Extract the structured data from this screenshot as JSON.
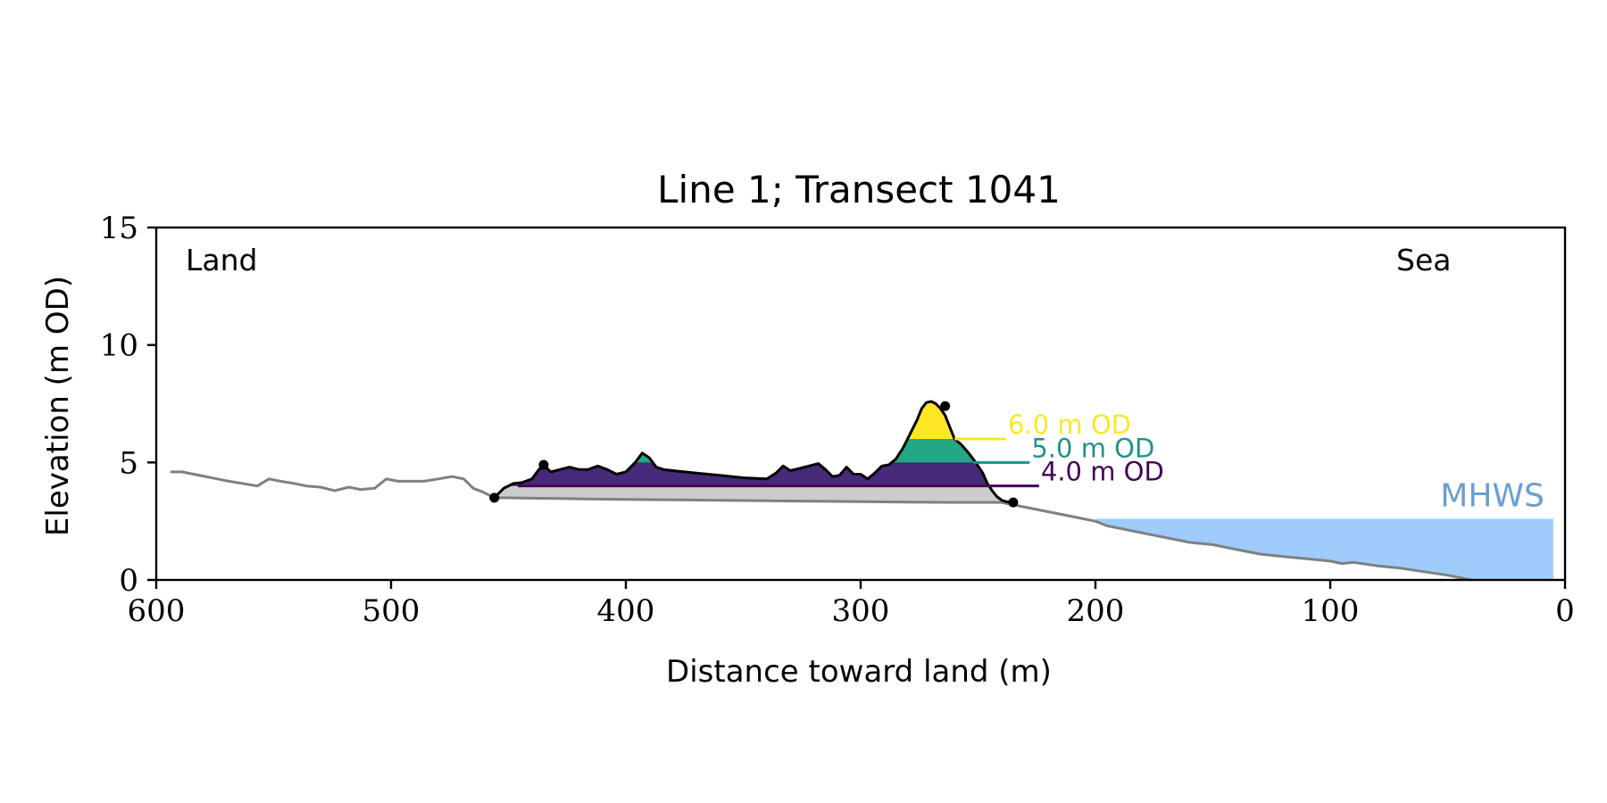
{
  "chart_data": {
    "type": "area",
    "title": "Line 1; Transect 1041",
    "xlabel": "Distance toward land (m)",
    "ylabel": "Elevation (m OD)",
    "xlim": [
      600,
      0
    ],
    "ylim": [
      0,
      15
    ],
    "x_ticks": [
      600,
      500,
      400,
      300,
      200,
      100,
      0
    ],
    "y_ticks": [
      0,
      5,
      10,
      15
    ],
    "grid": false,
    "annotations": {
      "land": "Land",
      "sea": "Sea",
      "mhws": "MHWS"
    },
    "mhws": {
      "elevation": 2.6,
      "x_start": 200,
      "x_end": 5
    },
    "levels": [
      {
        "label": "6.0 m OD",
        "elevation": 6.0,
        "color": "#fde725",
        "line_start": 260,
        "line_end": 238
      },
      {
        "label": "5.0 m OD",
        "elevation": 5.0,
        "color": "#21918c",
        "line_start": 252,
        "line_end": 228
      },
      {
        "label": "4.0 m OD",
        "elevation": 4.0,
        "color": "#440154",
        "line_start": 446,
        "line_end": 224
      }
    ],
    "colors": {
      "profile": "#808080",
      "dune_outline": "#000000",
      "base_fill": "#cccccc",
      "below_4m_fill": "#472a7a",
      "band_5_6": "#22a884",
      "band_6_up": "#fde725",
      "mhws_fill": "#9ecbfa",
      "mhws_label": "#6a9fd0"
    },
    "dune_markers": [
      {
        "x": 456,
        "y": 3.5
      },
      {
        "x": 435,
        "y": 4.9
      },
      {
        "x": 264,
        "y": 7.4
      },
      {
        "x": 235,
        "y": 3.3
      }
    ],
    "dune_toe_line": {
      "x": [
        456,
        235
      ],
      "y": [
        3.5,
        3.3
      ]
    },
    "profile": {
      "x": [
        594,
        589,
        584,
        579,
        574,
        569,
        563,
        557,
        552,
        547,
        541,
        536,
        530,
        524,
        518,
        513,
        507,
        502,
        497,
        492,
        486,
        480,
        474,
        469,
        465,
        461,
        456,
        440,
        420,
        400,
        380,
        360,
        340,
        320,
        300,
        280,
        260,
        240,
        230,
        220,
        210,
        200,
        195,
        185,
        175,
        165,
        160,
        150,
        140,
        130,
        120,
        110,
        100,
        95,
        90,
        80,
        70,
        60,
        50,
        45,
        40
      ],
      "y": [
        4.6,
        4.6,
        4.5,
        4.4,
        4.3,
        4.2,
        4.1,
        4.0,
        4.3,
        4.2,
        4.1,
        4.0,
        3.95,
        3.8,
        3.95,
        3.85,
        3.9,
        4.3,
        4.2,
        4.2,
        4.2,
        4.3,
        4.4,
        4.3,
        3.9,
        3.75,
        3.5,
        3.48,
        3.45,
        3.43,
        3.41,
        3.39,
        3.37,
        3.35,
        3.33,
        3.31,
        3.3,
        3.3,
        3.1,
        2.9,
        2.7,
        2.5,
        2.3,
        2.1,
        1.9,
        1.7,
        1.6,
        1.5,
        1.3,
        1.1,
        1.0,
        0.9,
        0.8,
        0.7,
        0.75,
        0.6,
        0.5,
        0.35,
        0.2,
        0.1,
        0.0
      ]
    },
    "dune_surface": {
      "x": [
        456,
        452,
        448,
        444,
        440,
        437,
        435,
        432,
        428,
        424,
        420,
        416,
        412,
        408,
        404,
        400,
        396,
        393,
        390,
        387,
        384,
        380,
        370,
        360,
        350,
        340,
        336,
        333,
        330,
        326,
        322,
        318,
        315,
        312,
        309,
        306,
        303,
        300,
        297,
        294,
        291,
        288,
        285,
        282,
        279,
        276,
        274,
        272,
        270,
        268,
        266,
        264,
        262,
        260,
        257,
        254,
        251,
        248,
        246,
        244,
        242,
        240,
        238,
        235
      ],
      "y": [
        3.5,
        3.9,
        4.1,
        4.15,
        4.3,
        4.7,
        4.9,
        4.6,
        4.7,
        4.8,
        4.7,
        4.7,
        4.85,
        4.7,
        4.5,
        4.6,
        5.0,
        5.4,
        5.2,
        4.8,
        4.7,
        4.65,
        4.55,
        4.45,
        4.35,
        4.3,
        4.55,
        4.85,
        4.65,
        4.75,
        4.85,
        4.95,
        4.7,
        4.4,
        4.45,
        4.8,
        4.5,
        4.5,
        4.3,
        4.55,
        4.85,
        4.9,
        5.15,
        5.6,
        6.2,
        6.8,
        7.3,
        7.55,
        7.6,
        7.5,
        7.3,
        7.0,
        6.5,
        6.0,
        5.75,
        5.4,
        5.0,
        4.55,
        4.1,
        3.8,
        3.55,
        3.4,
        3.33,
        3.3
      ]
    }
  }
}
